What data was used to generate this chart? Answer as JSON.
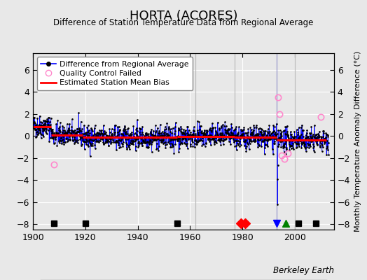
{
  "title": "HORTA (ACORES)",
  "subtitle": "Difference of Station Temperature Data from Regional Average",
  "ylabel": "Monthly Temperature Anomaly Difference (°C)",
  "xlabel_credit": "Berkeley Earth",
  "xlim": [
    1900,
    2015
  ],
  "ylim": [
    -8.5,
    7.5
  ],
  "yticks": [
    -8,
    -6,
    -4,
    -2,
    0,
    2,
    4,
    6
  ],
  "xticks": [
    1900,
    1920,
    1940,
    1960,
    1980,
    2000
  ],
  "bg_color": "#e8e8e8",
  "grid_color": "#ffffff",
  "bias_segments": [
    {
      "x": [
        1900,
        1907
      ],
      "y": [
        0.85,
        0.85
      ]
    },
    {
      "x": [
        1907,
        1919
      ],
      "y": [
        0.1,
        0.1
      ]
    },
    {
      "x": [
        1919,
        1955
      ],
      "y": [
        -0.15,
        -0.15
      ]
    },
    {
      "x": [
        1955,
        1962
      ],
      "y": [
        -0.05,
        -0.05
      ]
    },
    {
      "x": [
        1962,
        1977
      ],
      "y": [
        -0.05,
        -0.05
      ]
    },
    {
      "x": [
        1977,
        1993
      ],
      "y": [
        -0.15,
        -0.15
      ]
    },
    {
      "x": [
        1993,
        2012
      ],
      "y": [
        -0.35,
        -0.35
      ]
    }
  ],
  "vertical_lines": [
    {
      "x": 1962,
      "color": "#bbbbbb",
      "lw": 0.9
    },
    {
      "x": 1977,
      "color": "#bbbbbb",
      "lw": 0.9
    },
    {
      "x": 1993,
      "color": "#9999cc",
      "lw": 0.9
    },
    {
      "x": 2000,
      "color": "#bbbbbb",
      "lw": 0.9
    }
  ],
  "station_moves": [
    1979.5,
    1981.0
  ],
  "record_gaps": [
    1996.5
  ],
  "obs_changes": [
    1993.0
  ],
  "empirical_breaks": [
    1908.0,
    1920.0,
    1955.0,
    2001.5,
    2008.0
  ],
  "qc_failed_approx": [
    [
      1908.0,
      -2.6
    ],
    [
      1993.5,
      3.5
    ],
    [
      1994.2,
      2.0
    ],
    [
      1995.0,
      -1.8
    ],
    [
      1996.0,
      -2.1
    ],
    [
      1997.5,
      -1.6
    ],
    [
      2010.0,
      1.7
    ]
  ],
  "seed": 42,
  "noise_std": 0.52
}
